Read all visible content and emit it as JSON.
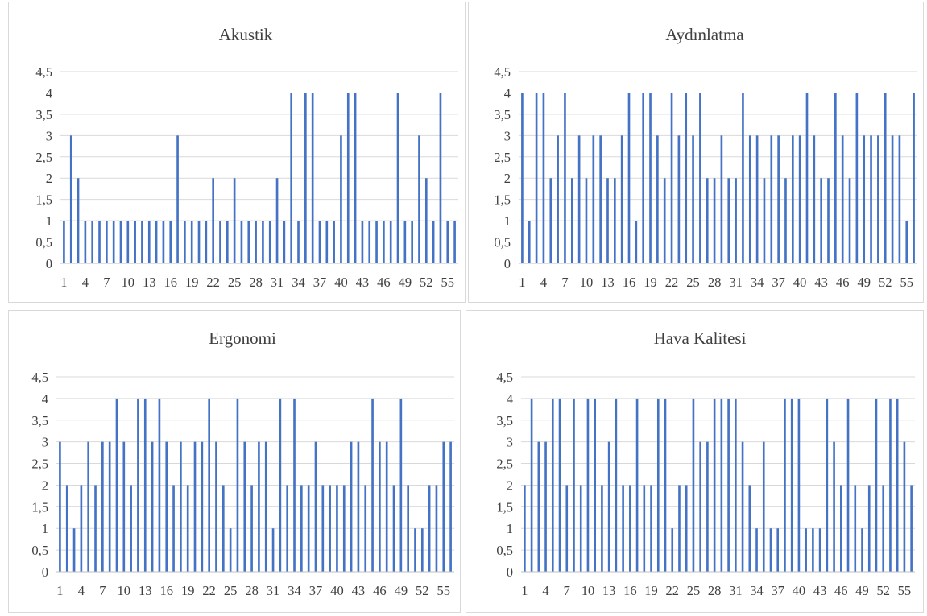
{
  "colors": {
    "bar": "#4472c4",
    "grid": "#d9d9d9",
    "text": "#404040"
  },
  "chart_data": [
    {
      "type": "bar",
      "title": "Akustik",
      "ylim": [
        0,
        4.5
      ],
      "yticks": [
        "0",
        "0,5",
        "1",
        "1,5",
        "2",
        "2,5",
        "3",
        "3,5",
        "4",
        "4,5"
      ],
      "xtick_labels": [
        "1",
        "4",
        "7",
        "10",
        "13",
        "16",
        "19",
        "22",
        "25",
        "28",
        "31",
        "34",
        "37",
        "40",
        "43",
        "46",
        "49",
        "52",
        "55"
      ],
      "categories": [
        1,
        2,
        3,
        4,
        5,
        6,
        7,
        8,
        9,
        10,
        11,
        12,
        13,
        14,
        15,
        16,
        17,
        18,
        19,
        20,
        21,
        22,
        23,
        24,
        25,
        26,
        27,
        28,
        29,
        30,
        31,
        32,
        33,
        34,
        35,
        36,
        37,
        38,
        39,
        40,
        41,
        42,
        43,
        44,
        45,
        46,
        47,
        48,
        49,
        50,
        51,
        52,
        53,
        54,
        55,
        56
      ],
      "values": [
        1,
        3,
        2,
        1,
        1,
        1,
        1,
        1,
        1,
        1,
        1,
        1,
        1,
        1,
        1,
        1,
        3,
        1,
        1,
        1,
        1,
        2,
        1,
        1,
        2,
        1,
        1,
        1,
        1,
        1,
        2,
        1,
        4,
        1,
        4,
        4,
        1,
        1,
        1,
        3,
        4,
        4,
        1,
        1,
        1,
        1,
        1,
        4,
        1,
        1,
        3,
        2,
        1,
        4,
        1,
        1
      ],
      "grid": true
    },
    {
      "type": "bar",
      "title": "Aydınlatma",
      "ylim": [
        0,
        4.5
      ],
      "yticks": [
        "0",
        "0,5",
        "1",
        "1,5",
        "2",
        "2,5",
        "3",
        "3,5",
        "4",
        "4,5"
      ],
      "xtick_labels": [
        "1",
        "4",
        "7",
        "10",
        "13",
        "16",
        "19",
        "22",
        "25",
        "28",
        "31",
        "34",
        "37",
        "40",
        "43",
        "46",
        "49",
        "52",
        "55"
      ],
      "categories": [
        1,
        2,
        3,
        4,
        5,
        6,
        7,
        8,
        9,
        10,
        11,
        12,
        13,
        14,
        15,
        16,
        17,
        18,
        19,
        20,
        21,
        22,
        23,
        24,
        25,
        26,
        27,
        28,
        29,
        30,
        31,
        32,
        33,
        34,
        35,
        36,
        37,
        38,
        39,
        40,
        41,
        42,
        43,
        44,
        45,
        46,
        47,
        48,
        49,
        50,
        51,
        52,
        53,
        54,
        55,
        56
      ],
      "values": [
        4,
        1,
        4,
        4,
        2,
        3,
        4,
        2,
        3,
        2,
        3,
        3,
        2,
        2,
        3,
        4,
        1,
        4,
        4,
        3,
        2,
        4,
        3,
        4,
        3,
        4,
        2,
        2,
        3,
        2,
        2,
        4,
        3,
        3,
        2,
        3,
        3,
        2,
        3,
        3,
        4,
        3,
        2,
        2,
        4,
        3,
        2,
        4,
        3,
        3,
        3,
        4,
        3,
        3,
        1,
        4
      ],
      "grid": true
    },
    {
      "type": "bar",
      "title": "Ergonomi",
      "ylim": [
        0,
        4.5
      ],
      "yticks": [
        "0",
        "0,5",
        "1",
        "1,5",
        "2",
        "2,5",
        "3",
        "3,5",
        "4",
        "4,5"
      ],
      "xtick_labels": [
        "1",
        "4",
        "7",
        "10",
        "13",
        "16",
        "19",
        "22",
        "25",
        "28",
        "31",
        "34",
        "37",
        "40",
        "43",
        "46",
        "49",
        "52",
        "55"
      ],
      "categories": [
        1,
        2,
        3,
        4,
        5,
        6,
        7,
        8,
        9,
        10,
        11,
        12,
        13,
        14,
        15,
        16,
        17,
        18,
        19,
        20,
        21,
        22,
        23,
        24,
        25,
        26,
        27,
        28,
        29,
        30,
        31,
        32,
        33,
        34,
        35,
        36,
        37,
        38,
        39,
        40,
        41,
        42,
        43,
        44,
        45,
        46,
        47,
        48,
        49,
        50,
        51,
        52,
        53,
        54,
        55,
        56
      ],
      "values": [
        3,
        2,
        1,
        2,
        3,
        2,
        3,
        3,
        4,
        3,
        2,
        4,
        4,
        3,
        4,
        3,
        2,
        3,
        2,
        3,
        3,
        4,
        3,
        2,
        1,
        4,
        3,
        2,
        3,
        3,
        1,
        4,
        2,
        4,
        2,
        2,
        3,
        2,
        2,
        2,
        2,
        3,
        3,
        2,
        4,
        3,
        3,
        2,
        4,
        2,
        1,
        1,
        2,
        2,
        3,
        3
      ],
      "grid": true
    },
    {
      "type": "bar",
      "title": "Hava Kalitesi",
      "ylim": [
        0,
        4.5
      ],
      "yticks": [
        "0",
        "0,5",
        "1",
        "1,5",
        "2",
        "2,5",
        "3",
        "3,5",
        "4",
        "4,5"
      ],
      "xtick_labels": [
        "1",
        "4",
        "7",
        "10",
        "13",
        "16",
        "19",
        "22",
        "25",
        "28",
        "31",
        "34",
        "37",
        "40",
        "43",
        "46",
        "49",
        "52",
        "55"
      ],
      "categories": [
        1,
        2,
        3,
        4,
        5,
        6,
        7,
        8,
        9,
        10,
        11,
        12,
        13,
        14,
        15,
        16,
        17,
        18,
        19,
        20,
        21,
        22,
        23,
        24,
        25,
        26,
        27,
        28,
        29,
        30,
        31,
        32,
        33,
        34,
        35,
        36,
        37,
        38,
        39,
        40,
        41,
        42,
        43,
        44,
        45,
        46,
        47,
        48,
        49,
        50,
        51,
        52,
        53,
        54,
        55,
        56
      ],
      "values": [
        2,
        4,
        3,
        3,
        4,
        4,
        2,
        4,
        2,
        4,
        4,
        2,
        3,
        4,
        2,
        2,
        4,
        2,
        2,
        4,
        4,
        1,
        2,
        2,
        4,
        3,
        3,
        4,
        4,
        4,
        4,
        3,
        2,
        1,
        3,
        1,
        1,
        4,
        4,
        4,
        1,
        1,
        1,
        4,
        3,
        2,
        4,
        2,
        1,
        2,
        4,
        2,
        4,
        4,
        3,
        2
      ],
      "grid": true
    }
  ]
}
